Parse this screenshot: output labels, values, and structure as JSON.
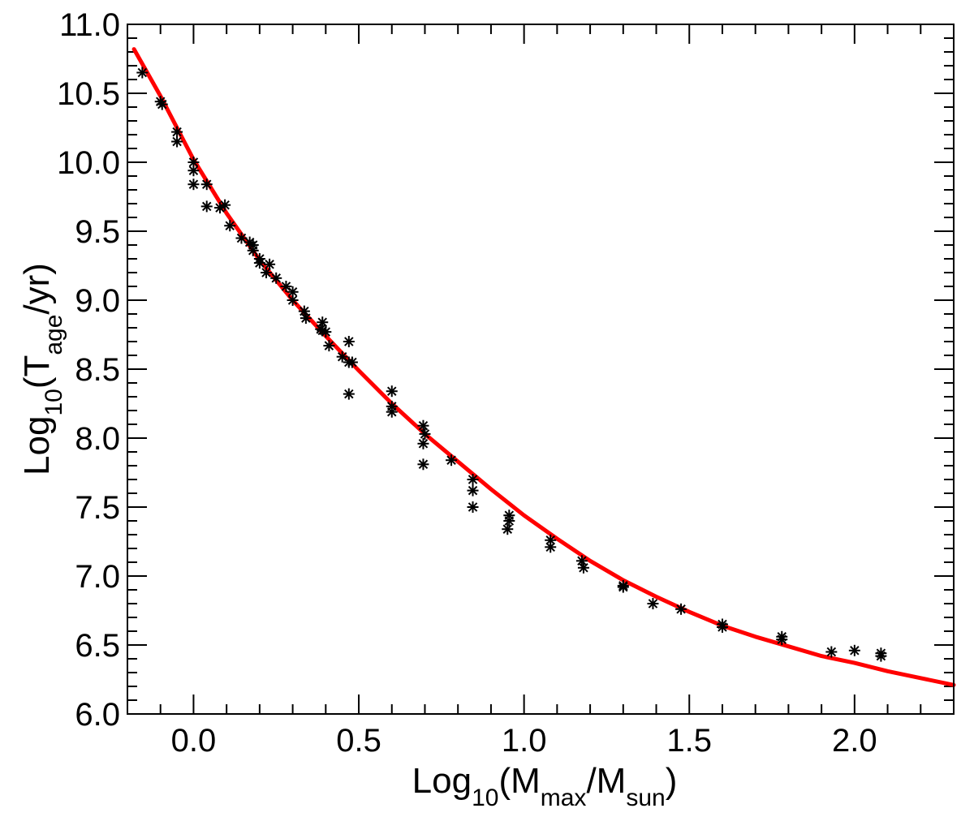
{
  "chart_data": {
    "type": "scatter",
    "title": "",
    "xlabel": "Log10(Mmax/Msun)",
    "ylabel": "Log10(Tage/yr)",
    "xlabel_parts": {
      "base": "Log",
      "base_sub": "10",
      "open": "(M",
      "num_sub": "max",
      "slash": "/M",
      "den_sub": "sun",
      "close": ")"
    },
    "ylabel_parts": {
      "base": "Log",
      "base_sub": "10",
      "open": "(T",
      "num_sub": "age",
      "rest": "/yr)"
    },
    "xlim": [
      -0.2,
      2.3
    ],
    "ylim": [
      6.0,
      11.0
    ],
    "xticks": [
      0.0,
      0.5,
      1.0,
      1.5,
      2.0
    ],
    "xtick_labels": [
      "0.0",
      "0.5",
      "1.0",
      "1.5",
      "2.0"
    ],
    "yticks": [
      6.0,
      6.5,
      7.0,
      7.5,
      8.0,
      8.5,
      9.0,
      9.5,
      10.0,
      10.5,
      11.0
    ],
    "ytick_labels": [
      "6.0",
      "6.5",
      "7.0",
      "7.5",
      "8.0",
      "8.5",
      "9.0",
      "9.5",
      "10.0",
      "10.5",
      "11.0"
    ],
    "x_minor_step": 0.1,
    "y_minor_step": 0.1,
    "grid": false,
    "legend": "none",
    "series": [
      {
        "kind": "scatter",
        "marker": "asterisk",
        "color": "#000000",
        "points": [
          [
            -0.155,
            10.65
          ],
          [
            -0.1,
            10.44
          ],
          [
            -0.095,
            10.42
          ],
          [
            -0.05,
            10.22
          ],
          [
            -0.05,
            10.15
          ],
          [
            0.0,
            10.0
          ],
          [
            0.0,
            9.94
          ],
          [
            0.0,
            9.84
          ],
          [
            0.04,
            9.84
          ],
          [
            0.04,
            9.68
          ],
          [
            0.08,
            9.67
          ],
          [
            0.095,
            9.69
          ],
          [
            0.11,
            9.54
          ],
          [
            0.145,
            9.45
          ],
          [
            0.17,
            9.42
          ],
          [
            0.18,
            9.4
          ],
          [
            0.18,
            9.36
          ],
          [
            0.2,
            9.3
          ],
          [
            0.2,
            9.27
          ],
          [
            0.23,
            9.26
          ],
          [
            0.22,
            9.2
          ],
          [
            0.25,
            9.16
          ],
          [
            0.28,
            9.1
          ],
          [
            0.3,
            9.06
          ],
          [
            0.3,
            9.0
          ],
          [
            0.335,
            8.92
          ],
          [
            0.34,
            8.87
          ],
          [
            0.385,
            8.79
          ],
          [
            0.39,
            8.84
          ],
          [
            0.39,
            8.78
          ],
          [
            0.4,
            8.77
          ],
          [
            0.41,
            8.67
          ],
          [
            0.45,
            8.59
          ],
          [
            0.47,
            8.7
          ],
          [
            0.47,
            8.55
          ],
          [
            0.48,
            8.55
          ],
          [
            0.47,
            8.32
          ],
          [
            0.6,
            8.34
          ],
          [
            0.6,
            8.23
          ],
          [
            0.6,
            8.19
          ],
          [
            0.695,
            8.09
          ],
          [
            0.7,
            8.03
          ],
          [
            0.695,
            7.96
          ],
          [
            0.695,
            7.81
          ],
          [
            0.78,
            7.84
          ],
          [
            0.845,
            7.7
          ],
          [
            0.845,
            7.62
          ],
          [
            0.845,
            7.5
          ],
          [
            0.955,
            7.44
          ],
          [
            0.955,
            7.4
          ],
          [
            0.95,
            7.34
          ],
          [
            1.08,
            7.26
          ],
          [
            1.08,
            7.21
          ],
          [
            1.175,
            7.11
          ],
          [
            1.18,
            7.06
          ],
          [
            1.3,
            6.93
          ],
          [
            1.3,
            6.92
          ],
          [
            1.39,
            6.8
          ],
          [
            1.475,
            6.76
          ],
          [
            1.6,
            6.65
          ],
          [
            1.6,
            6.63
          ],
          [
            1.78,
            6.56
          ],
          [
            1.78,
            6.54
          ],
          [
            1.93,
            6.45
          ],
          [
            2.0,
            6.46
          ],
          [
            2.08,
            6.44
          ],
          [
            2.08,
            6.42
          ]
        ]
      },
      {
        "kind": "line",
        "color": "#ff0000",
        "points": [
          [
            -0.18,
            10.82
          ],
          [
            -0.1,
            10.48
          ],
          [
            0.0,
            10.02
          ],
          [
            0.1,
            9.63
          ],
          [
            0.2,
            9.29
          ],
          [
            0.3,
            9.0
          ],
          [
            0.4,
            8.74
          ],
          [
            0.5,
            8.49
          ],
          [
            0.6,
            8.25
          ],
          [
            0.7,
            8.03
          ],
          [
            0.8,
            7.83
          ],
          [
            0.9,
            7.63
          ],
          [
            1.0,
            7.44
          ],
          [
            1.1,
            7.27
          ],
          [
            1.2,
            7.11
          ],
          [
            1.3,
            6.97
          ],
          [
            1.4,
            6.85
          ],
          [
            1.5,
            6.74
          ],
          [
            1.6,
            6.64
          ],
          [
            1.7,
            6.56
          ],
          [
            1.8,
            6.49
          ],
          [
            1.9,
            6.42
          ],
          [
            2.0,
            6.37
          ],
          [
            2.1,
            6.31
          ],
          [
            2.2,
            6.26
          ],
          [
            2.3,
            6.21
          ]
        ]
      }
    ]
  }
}
